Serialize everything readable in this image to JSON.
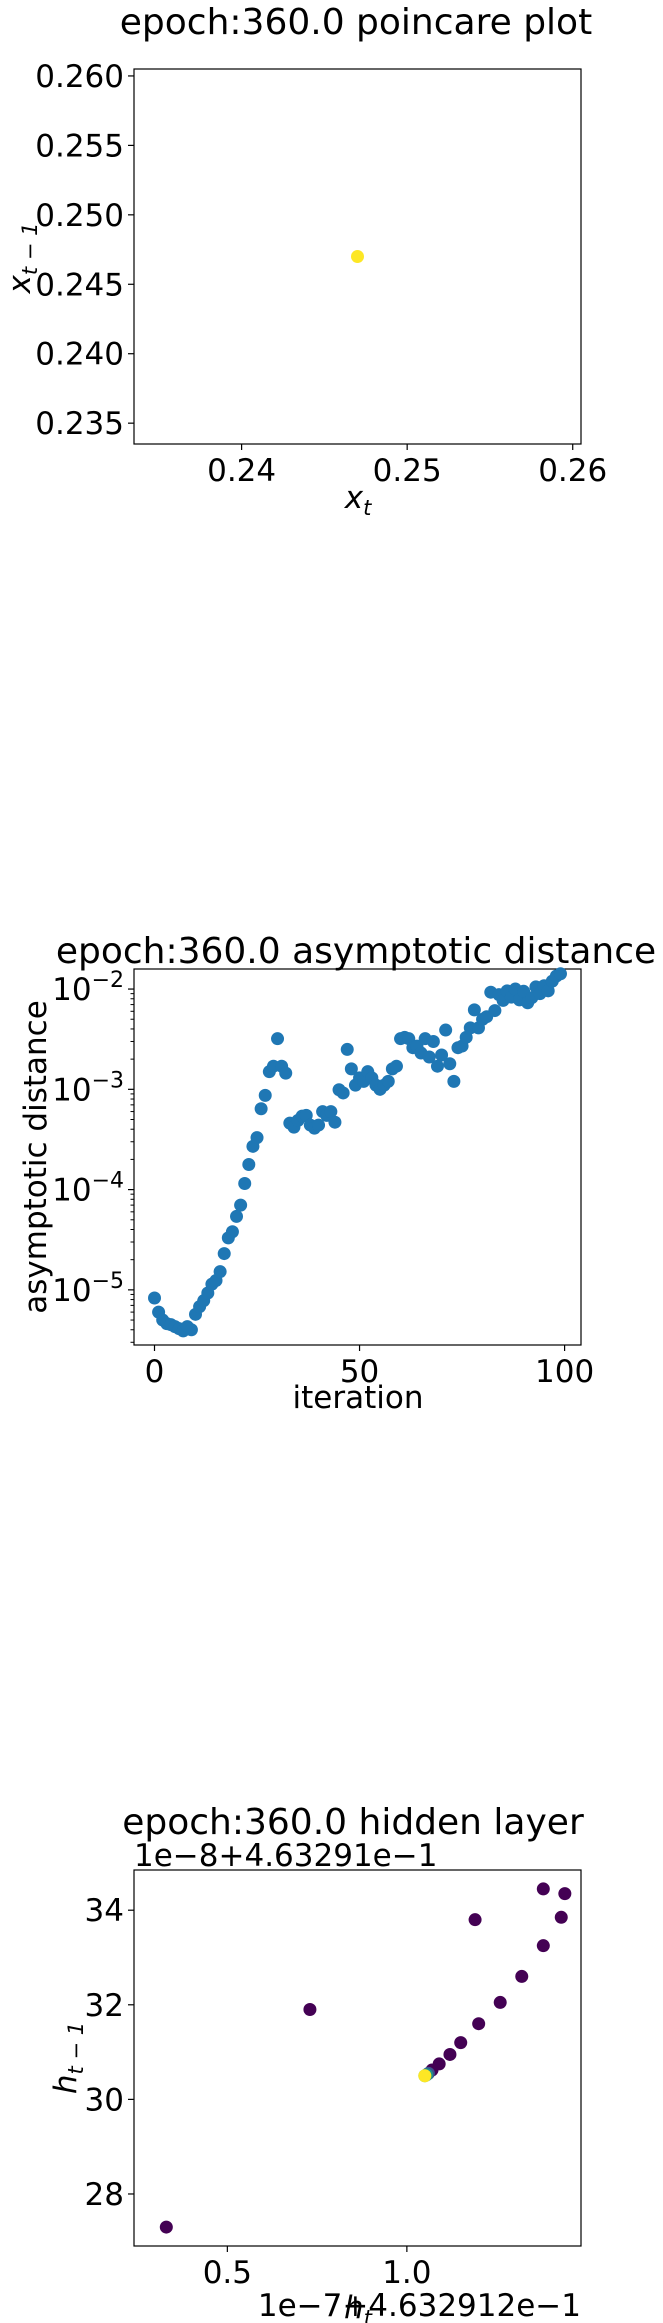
{
  "chart_data": [
    {
      "type": "scatter",
      "title": "epoch:360.0 poincare plot",
      "xlabel": "x",
      "xlabel_sub": "t",
      "ylabel": "x",
      "ylabel_sub": "t − 1",
      "xlim": [
        0.2335,
        0.2605
      ],
      "ylim": [
        0.2335,
        0.2605
      ],
      "xticks": [
        {
          "value": 0.24,
          "label": "0.24"
        },
        {
          "value": 0.25,
          "label": "0.25"
        },
        {
          "value": 0.26,
          "label": "0.26"
        }
      ],
      "yticks": [
        {
          "value": 0.235,
          "label": "0.235"
        },
        {
          "value": 0.24,
          "label": "0.240"
        },
        {
          "value": 0.245,
          "label": "0.245"
        },
        {
          "value": 0.25,
          "label": "0.250"
        },
        {
          "value": 0.255,
          "label": "0.255"
        },
        {
          "value": 0.26,
          "label": "0.260"
        }
      ],
      "points": [
        {
          "x": 0.247,
          "y": 0.247
        }
      ],
      "point_color": "#fde725"
    },
    {
      "type": "scatter",
      "title": "epoch:360.0 asymptotic distance",
      "xlabel": "iteration",
      "ylabel": "asymptotic distance",
      "yscale": "log",
      "xlim": [
        -5,
        104
      ],
      "ylim_exp": [
        -5.55,
        -1.8
      ],
      "xticks": [
        {
          "value": 0,
          "label": "0"
        },
        {
          "value": 50,
          "label": "50"
        },
        {
          "value": 100,
          "label": "100"
        }
      ],
      "yticks": [
        {
          "exp": -5,
          "base": "10",
          "sup": "−5"
        },
        {
          "exp": -4,
          "base": "10",
          "sup": "−4"
        },
        {
          "exp": -3,
          "base": "10",
          "sup": "−3"
        },
        {
          "exp": -2,
          "base": "10",
          "sup": "−2"
        }
      ],
      "x": [
        0,
        1,
        2,
        3,
        4,
        5,
        6,
        7,
        8,
        9,
        10,
        11,
        12,
        13,
        14,
        15,
        16,
        17,
        18,
        19,
        20,
        21,
        22,
        23,
        24,
        25,
        26,
        27,
        28,
        29,
        30,
        31,
        32,
        33,
        34,
        35,
        36,
        37,
        38,
        39,
        40,
        41,
        42,
        43,
        44,
        45,
        46,
        47,
        48,
        49,
        50,
        51,
        52,
        53,
        54,
        55,
        56,
        57,
        58,
        59,
        60,
        61,
        62,
        63,
        64,
        65,
        66,
        67,
        68,
        69,
        70,
        71,
        72,
        73,
        74,
        75,
        76,
        77,
        78,
        79,
        80,
        81,
        82,
        83,
        84,
        85,
        86,
        87,
        88,
        89,
        90,
        91,
        92,
        93,
        94,
        95,
        96,
        97,
        98,
        99
      ],
      "y": [
        8.3e-06,
        6e-06,
        5e-06,
        4.6e-06,
        4.5e-06,
        4.3e-06,
        4.1e-06,
        3.9e-06,
        4.3e-06,
        4e-06,
        5.7e-06,
        6.8e-06,
        7.8e-06,
        9.3e-06,
        1.14e-05,
        1.24e-05,
        1.52e-05,
        2.3e-05,
        3.3e-05,
        3.8e-05,
        5.4e-05,
        7e-05,
        0.000115,
        0.000178,
        0.00027,
        0.00033,
        0.00064,
        0.00087,
        0.0015,
        0.0017,
        0.0032,
        0.0017,
        0.00145,
        0.00046,
        0.00042,
        0.00049,
        0.00054,
        0.00055,
        0.00044,
        0.00041,
        0.00044,
        0.0006,
        0.00055,
        0.0006,
        0.00047,
        0.00099,
        0.00092,
        0.0025,
        0.0016,
        0.0011,
        0.0013,
        0.0012,
        0.0015,
        0.0013,
        0.0011,
        0.001,
        0.0011,
        0.0012,
        0.0016,
        0.0017,
        0.0032,
        0.0033,
        0.0032,
        0.0026,
        0.0027,
        0.0023,
        0.0032,
        0.0021,
        0.003,
        0.0017,
        0.0022,
        0.0039,
        0.0018,
        0.0012,
        0.0026,
        0.0027,
        0.0033,
        0.0041,
        0.0062,
        0.0041,
        0.005,
        0.0053,
        0.0093,
        0.0061,
        0.0088,
        0.0077,
        0.0096,
        0.0083,
        0.01,
        0.0078,
        0.0095,
        0.0073,
        0.0082,
        0.0105,
        0.009,
        0.0108,
        0.0096,
        0.012,
        0.0135,
        0.0142
      ],
      "point_color": "#1f77b4"
    },
    {
      "type": "scatter",
      "title": "epoch:360.0 hidden layer",
      "xlabel": "h",
      "xlabel_sub": "t",
      "ylabel": "h",
      "ylabel_sub": "t − 1",
      "x_offset_label": "1e−7+4.632912e−1",
      "y_offset_label": "1e−8+4.63291e−1",
      "xlim": [
        0.24,
        1.485
      ],
      "ylim": [
        26.9,
        34.85
      ],
      "xticks": [
        {
          "value": 0.5,
          "label": "0.5"
        },
        {
          "value": 1.0,
          "label": "1.0"
        }
      ],
      "yticks": [
        {
          "value": 28,
          "label": "28"
        },
        {
          "value": 30,
          "label": "30"
        },
        {
          "value": 32,
          "label": "32"
        },
        {
          "value": 34,
          "label": "34"
        }
      ],
      "points": [
        {
          "x": 0.33,
          "y": 27.3,
          "c": "#440154"
        },
        {
          "x": 0.73,
          "y": 31.9,
          "c": "#440154"
        },
        {
          "x": 1.19,
          "y": 33.8,
          "c": "#440154"
        },
        {
          "x": 1.38,
          "y": 34.45,
          "c": "#440154"
        },
        {
          "x": 1.44,
          "y": 34.35,
          "c": "#440154"
        },
        {
          "x": 1.43,
          "y": 33.85,
          "c": "#440154"
        },
        {
          "x": 1.38,
          "y": 33.25,
          "c": "#440154"
        },
        {
          "x": 1.32,
          "y": 32.6,
          "c": "#440154"
        },
        {
          "x": 1.26,
          "y": 32.05,
          "c": "#440154"
        },
        {
          "x": 1.2,
          "y": 31.6,
          "c": "#440154"
        },
        {
          "x": 1.15,
          "y": 31.2,
          "c": "#440154"
        },
        {
          "x": 1.12,
          "y": 30.95,
          "c": "#440154"
        },
        {
          "x": 1.09,
          "y": 30.75,
          "c": "#440154"
        },
        {
          "x": 1.07,
          "y": 30.62,
          "c": "#440154"
        },
        {
          "x": 1.06,
          "y": 30.55,
          "c": "#3b528b"
        },
        {
          "x": 1.055,
          "y": 30.52,
          "c": "#21918c"
        },
        {
          "x": 1.05,
          "y": 30.5,
          "c": "#5ec962"
        },
        {
          "x": 1.05,
          "y": 30.5,
          "c": "#fde725"
        }
      ]
    }
  ]
}
